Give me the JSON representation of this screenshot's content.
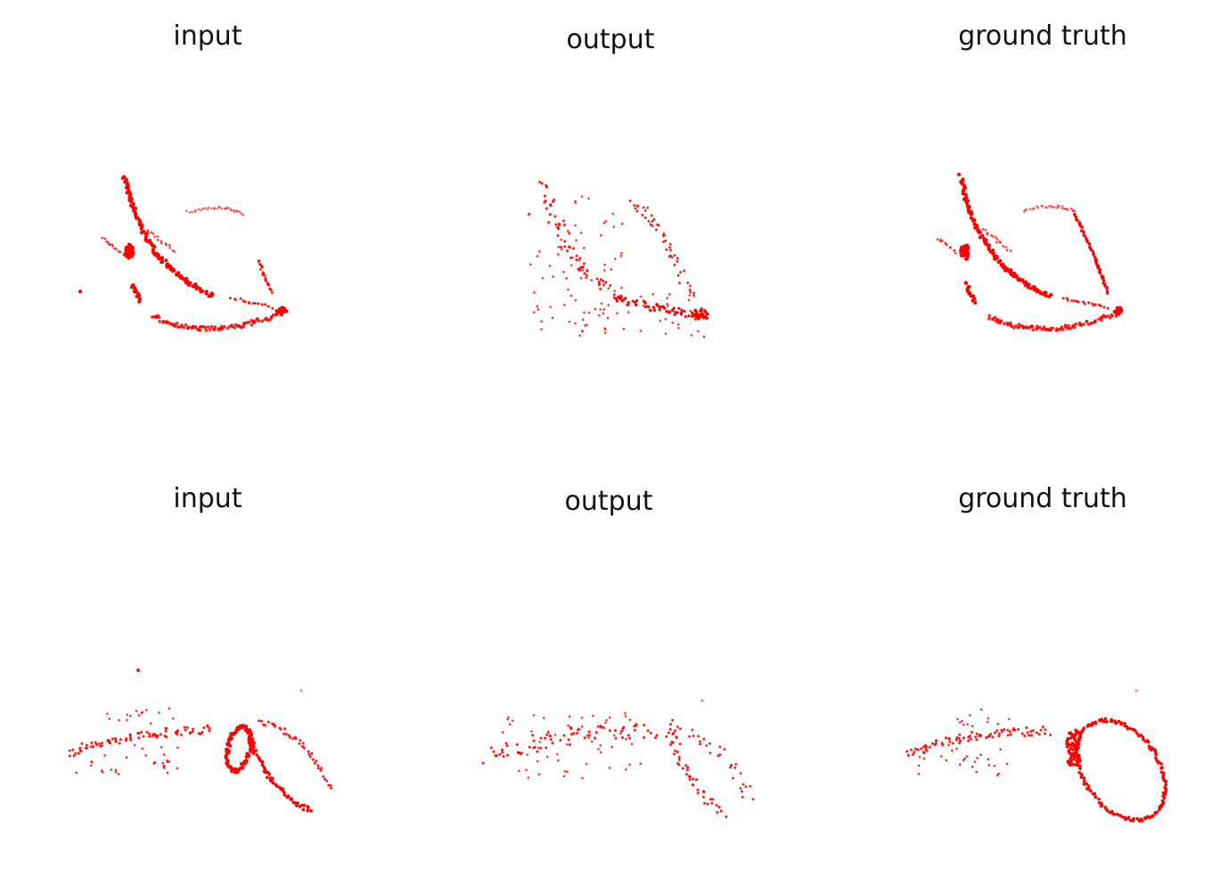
{
  "figure": {
    "point_color": "#ff0000",
    "panels": [
      {
        "row": 0,
        "col": 0,
        "title": "input",
        "sample": "cloud-a",
        "variant": "input"
      },
      {
        "row": 0,
        "col": 1,
        "title": "output",
        "sample": "cloud-a",
        "variant": "output"
      },
      {
        "row": 0,
        "col": 2,
        "title": "ground truth",
        "sample": "cloud-a",
        "variant": "truth"
      },
      {
        "row": 1,
        "col": 0,
        "title": "input",
        "sample": "cloud-b",
        "variant": "input"
      },
      {
        "row": 1,
        "col": 1,
        "title": "output",
        "sample": "cloud-b",
        "variant": "output"
      },
      {
        "row": 1,
        "col": 2,
        "title": "ground truth",
        "sample": "cloud-b",
        "variant": "truth"
      }
    ]
  }
}
